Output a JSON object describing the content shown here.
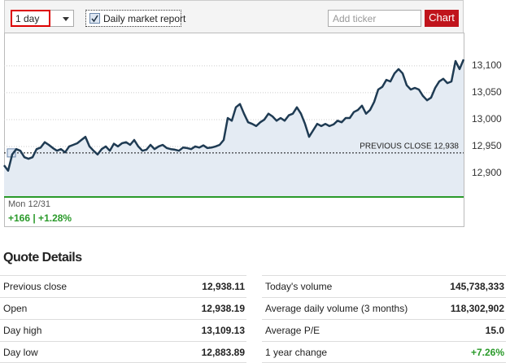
{
  "toolbar": {
    "range_select": "1 day",
    "checkbox_label": "Daily market report",
    "ticker_placeholder": "Add ticker",
    "chart_button": "Chart"
  },
  "chart_data": {
    "type": "line",
    "color": "#1f3b53",
    "values": [
      12915,
      12905,
      12935,
      12945,
      12942,
      12930,
      12927,
      12930,
      12945,
      12948,
      12958,
      12953,
      12947,
      12942,
      12945,
      12939,
      12950,
      12953,
      12956,
      12962,
      12968,
      12950,
      12942,
      12935,
      12945,
      12950,
      12942,
      12955,
      12950,
      12956,
      12958,
      12953,
      12962,
      12950,
      12942,
      12944,
      12953,
      12945,
      12950,
      12953,
      12947,
      12945,
      12944,
      12942,
      12948,
      12947,
      12945,
      12950,
      12948,
      12952,
      12947,
      12948,
      12950,
      12953,
      12962,
      13003,
      12998,
      13023,
      13029,
      13011,
      12995,
      12992,
      12988,
      12995,
      13000,
      13011,
      13006,
      12998,
      13003,
      12998,
      13008,
      13011,
      13023,
      13011,
      12992,
      12968,
      12980,
      12992,
      12988,
      12992,
      12988,
      12991,
      12998,
      12995,
      13003,
      13003,
      13014,
      13018,
      13026,
      13011,
      13018,
      13033,
      13056,
      13061,
      13074,
      13071,
      13086,
      13094,
      13086,
      13064,
      13056,
      13059,
      13056,
      13044,
      13036,
      13041,
      13059,
      13071,
      13076,
      13068,
      13071,
      13109,
      13094,
      13112
    ],
    "ylim": [
      12856,
      13162
    ],
    "yticks": [
      {
        "value": 12900,
        "label": "12,900"
      },
      {
        "value": 12950,
        "label": "12,950"
      },
      {
        "value": 13000,
        "label": "13,000"
      },
      {
        "value": 13050,
        "label": "13,050"
      },
      {
        "value": 13100,
        "label": "13,100"
      }
    ],
    "grid": true,
    "reference_line": {
      "value": 12938,
      "label": "PREVIOUS CLOSE 12,938"
    },
    "date_label": "Mon 12/31",
    "change_label": "+166 | +1.28%"
  },
  "quote_details": {
    "title": "Quote Details",
    "left": [
      [
        "Previous close",
        "12,938.11"
      ],
      [
        "Open",
        "12,938.19"
      ],
      [
        "Day high",
        "13,109.13"
      ],
      [
        "Day low",
        "12,883.89"
      ]
    ],
    "right": [
      [
        "Today's volume",
        "145,738,333"
      ],
      [
        "Average daily volume (3 months)",
        "118,302,902"
      ],
      [
        "Average P/E",
        "15.0"
      ],
      [
        "1 year change",
        "+7.26%"
      ]
    ]
  }
}
